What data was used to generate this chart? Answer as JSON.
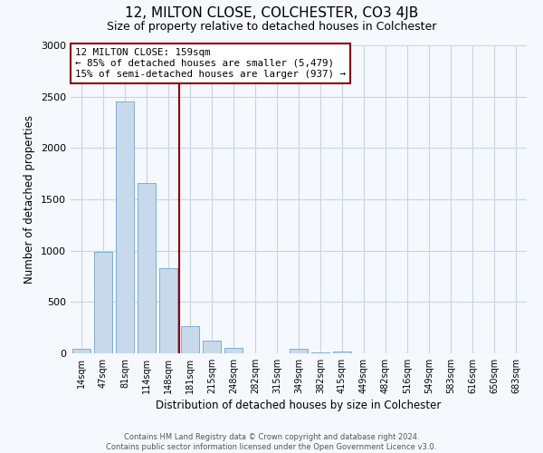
{
  "title": "12, MILTON CLOSE, COLCHESTER, CO3 4JB",
  "subtitle": "Size of property relative to detached houses in Colchester",
  "xlabel": "Distribution of detached houses by size in Colchester",
  "ylabel": "Number of detached properties",
  "footer_line1": "Contains HM Land Registry data © Crown copyright and database right 2024.",
  "footer_line2": "Contains public sector information licensed under the Open Government Licence v3.0.",
  "bar_labels": [
    "14sqm",
    "47sqm",
    "81sqm",
    "114sqm",
    "148sqm",
    "181sqm",
    "215sqm",
    "248sqm",
    "282sqm",
    "315sqm",
    "349sqm",
    "382sqm",
    "415sqm",
    "449sqm",
    "482sqm",
    "516sqm",
    "549sqm",
    "583sqm",
    "616sqm",
    "650sqm",
    "683sqm"
  ],
  "bar_values": [
    45,
    990,
    2450,
    1660,
    830,
    265,
    120,
    55,
    3,
    3,
    40,
    5,
    18,
    3,
    2,
    2,
    2,
    1,
    1,
    1,
    1
  ],
  "bar_color": "#c9d9ec",
  "bar_edge_color": "#7aafd4",
  "vline_x": 4.5,
  "vline_color": "#8b0000",
  "annotation_title": "12 MILTON CLOSE: 159sqm",
  "annotation_line1": "← 85% of detached houses are smaller (5,479)",
  "annotation_line2": "15% of semi-detached houses are larger (937) →",
  "annotation_box_color": "#8b0000",
  "ylim": [
    0,
    3000
  ],
  "yticks": [
    0,
    500,
    1000,
    1500,
    2000,
    2500,
    3000
  ],
  "background_color": "#f5f8fd",
  "grid_color": "#c8d4e8"
}
